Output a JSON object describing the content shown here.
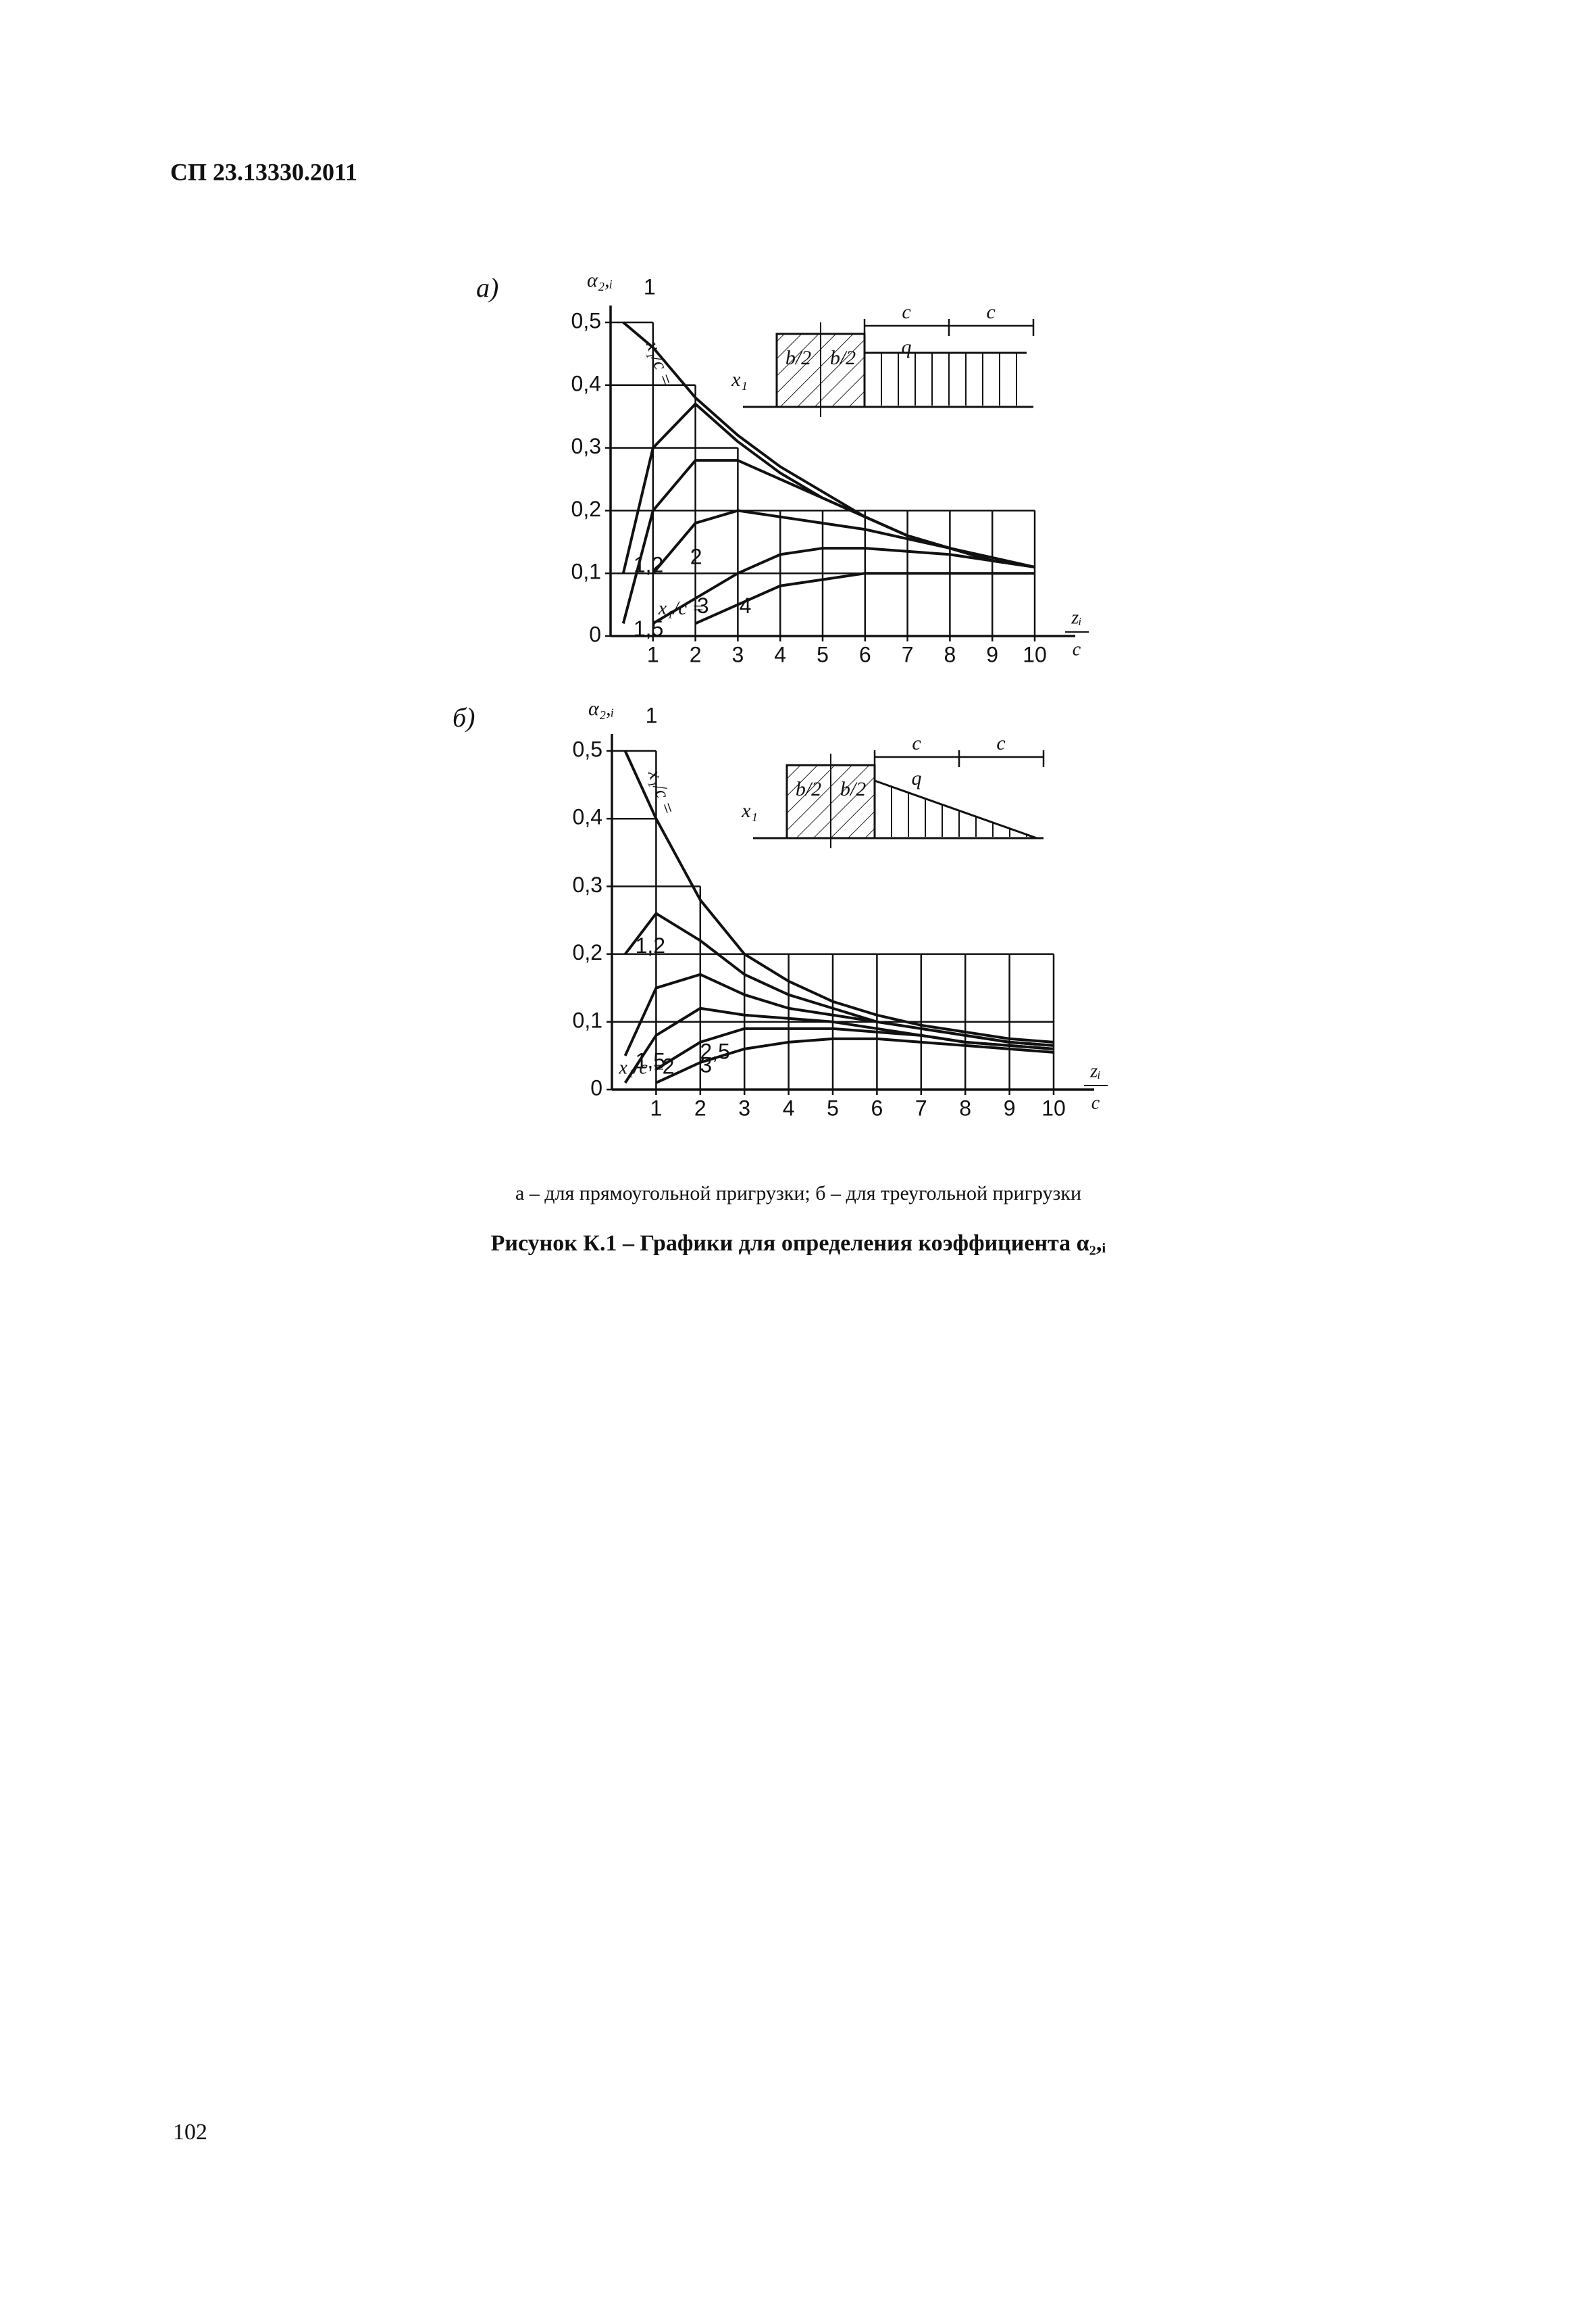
{
  "header": "СП 23.13330.2011",
  "chart_data": [
    {
      "type": "line",
      "panel": "а)",
      "ylabel": "α₂,ᵢ",
      "xlabel": {
        "numerator": "zᵢ",
        "denominator": "c"
      },
      "annotation": "x₁/c =",
      "inset_labels": [
        "x₁",
        "b/2",
        "b/2",
        "c",
        "c",
        "q"
      ],
      "xlim": [
        0,
        10
      ],
      "ylim": [
        0,
        0.5
      ],
      "xticks": [
        1,
        2,
        3,
        4,
        5,
        6,
        7,
        8,
        9,
        10
      ],
      "yticks": [
        0,
        {
          "value": 0.1,
          "label": "0,1"
        },
        {
          "value": 0.2,
          "label": "0,2"
        },
        {
          "value": 0.3,
          "label": "0,3"
        },
        {
          "value": 0.4,
          "label": "0,4"
        },
        {
          "value": 0.5,
          "label": "0,5"
        }
      ],
      "steps": {
        "bins": [
          0,
          1,
          2,
          3,
          4,
          5,
          6,
          7,
          8,
          9,
          10
        ],
        "values": [
          0.5,
          0.4,
          0.3,
          0.2,
          0.2,
          0.2,
          0.2,
          0.2,
          0.2,
          0.2
        ]
      },
      "x": [
        0.3,
        1,
        2,
        3,
        4,
        5,
        6,
        7,
        8,
        9,
        10
      ],
      "series": [
        {
          "name": "1",
          "color": "#111111",
          "values": [
            0.5,
            0.46,
            0.38,
            0.32,
            0.27,
            0.23,
            0.19,
            0.16,
            0.14,
            0.12,
            0.11
          ]
        },
        {
          "name": "1,2",
          "color": "#111111",
          "values": [
            0.1,
            0.3,
            0.37,
            0.31,
            0.26,
            0.22,
            0.19,
            0.16,
            0.14,
            0.12,
            0.11
          ]
        },
        {
          "name": "1,5",
          "color": "#111111",
          "values": [
            0.02,
            0.2,
            0.28,
            0.28,
            0.25,
            0.22,
            0.19,
            0.16,
            0.14,
            0.12,
            0.11
          ]
        },
        {
          "name": "2",
          "color": "#111111",
          "values": [
            null,
            0.1,
            0.18,
            0.2,
            0.19,
            0.18,
            0.17,
            0.155,
            0.14,
            0.125,
            0.11
          ]
        },
        {
          "name": "3",
          "color": "#111111",
          "values": [
            null,
            0.02,
            0.06,
            0.1,
            0.13,
            0.14,
            0.14,
            0.135,
            0.13,
            0.12,
            0.11
          ]
        },
        {
          "name": "4",
          "color": "#111111",
          "values": [
            null,
            null,
            0.02,
            0.05,
            0.08,
            0.09,
            0.1,
            0.1,
            0.1,
            0.1,
            0.1
          ]
        }
      ]
    },
    {
      "type": "line",
      "panel": "б)",
      "ylabel": "α₂,ᵢ",
      "xlabel": {
        "numerator": "zᵢ",
        "denominator": "c"
      },
      "annotation": "x₁/c =",
      "inset_labels": [
        "x₁",
        "b/2",
        "b/2",
        "c",
        "c",
        "q"
      ],
      "xlim": [
        0,
        10
      ],
      "ylim": [
        0,
        0.5
      ],
      "xticks": [
        1,
        2,
        3,
        4,
        5,
        6,
        7,
        8,
        9,
        10
      ],
      "yticks": [
        0,
        {
          "value": 0.1,
          "label": "0,1"
        },
        {
          "value": 0.2,
          "label": "0,2"
        },
        {
          "value": 0.3,
          "label": "0,3"
        },
        {
          "value": 0.4,
          "label": "0,4"
        },
        {
          "value": 0.5,
          "label": "0,5"
        }
      ],
      "steps": {
        "bins": [
          0,
          1,
          2,
          3,
          4,
          5,
          6,
          7,
          8,
          9,
          10
        ],
        "values": [
          0.5,
          0.3,
          0.2,
          0.2,
          0.2,
          0.2,
          0.2,
          0.2,
          0.2,
          0.2
        ]
      },
      "x": [
        0.3,
        1,
        2,
        3,
        4,
        5,
        6,
        7,
        8,
        9,
        10
      ],
      "series": [
        {
          "name": "1",
          "color": "#111111",
          "values": [
            0.5,
            0.4,
            0.28,
            0.2,
            0.16,
            0.13,
            0.11,
            0.095,
            0.085,
            0.075,
            0.07
          ]
        },
        {
          "name": "1,2",
          "color": "#111111",
          "values": [
            0.2,
            0.26,
            0.22,
            0.17,
            0.14,
            0.12,
            0.1,
            0.09,
            0.08,
            0.07,
            0.065
          ]
        },
        {
          "name": "1,5",
          "color": "#111111",
          "values": [
            0.05,
            0.15,
            0.17,
            0.14,
            0.12,
            0.11,
            0.1,
            0.09,
            0.08,
            0.07,
            0.065
          ]
        },
        {
          "name": "2",
          "color": "#111111",
          "values": [
            0.01,
            0.08,
            0.12,
            0.11,
            0.105,
            0.1,
            0.09,
            0.08,
            0.07,
            0.065,
            0.06
          ]
        },
        {
          "name": "2,5",
          "color": "#111111",
          "values": [
            null,
            0.03,
            0.07,
            0.09,
            0.09,
            0.09,
            0.085,
            0.08,
            0.07,
            0.065,
            0.06
          ]
        },
        {
          "name": "3",
          "color": "#111111",
          "values": [
            null,
            0.01,
            0.04,
            0.06,
            0.07,
            0.075,
            0.075,
            0.07,
            0.065,
            0.06,
            0.055
          ]
        }
      ]
    }
  ],
  "caption": "а – для прямоугольной пригрузки;  б – для треугольной пригрузки",
  "figure_title": "Рисунок К.1 – Графики для определения коэффициента α₂,ᵢ",
  "page_number": "102"
}
